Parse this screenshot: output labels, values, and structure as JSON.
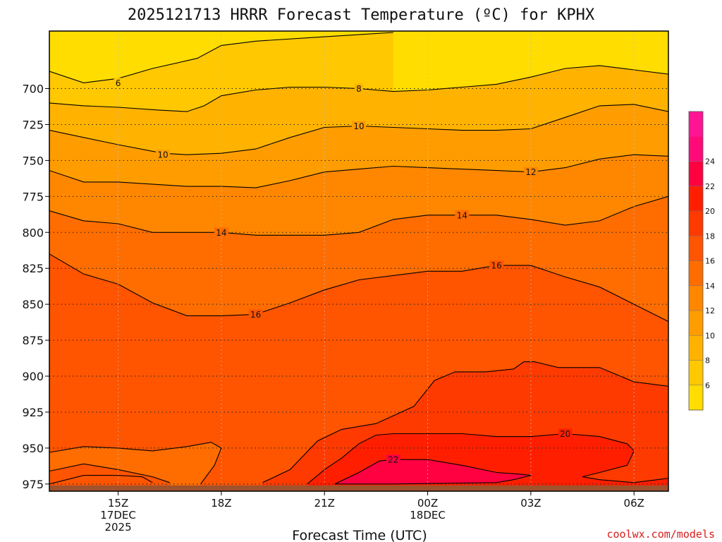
{
  "chart_data": {
    "type": "filled-contour",
    "title": "2025121713 HRRR Forecast Temperature (ºC) for KPHX",
    "xlabel": "Forecast Time (UTC)",
    "ylabel": "",
    "credit": "coolwx.com/models",
    "y_axis": {
      "quantity": "pressure (hPa)",
      "inverted": true,
      "range": [
        980,
        660
      ],
      "ticks": [
        700,
        725,
        750,
        775,
        800,
        825,
        850,
        875,
        900,
        925,
        950,
        975
      ]
    },
    "x_axis": {
      "range_utc": [
        "2025-12-17 13Z",
        "2025-12-18 07Z"
      ],
      "ticks": [
        {
          "hour": 15,
          "label": [
            "15Z",
            "17DEC",
            "2025"
          ]
        },
        {
          "hour": 18,
          "label": [
            "18Z"
          ]
        },
        {
          "hour": 21,
          "label": [
            "21Z"
          ]
        },
        {
          "hour": 24,
          "label": [
            "00Z",
            "18DEC"
          ]
        },
        {
          "hour": 27,
          "label": [
            "03Z"
          ]
        },
        {
          "hour": 30,
          "label": [
            "06Z"
          ]
        }
      ]
    },
    "grid": true,
    "colorbar": {
      "levels": [
        4,
        6,
        8,
        10,
        12,
        14,
        16,
        18,
        20,
        22,
        24,
        26
      ],
      "tick_labels": [
        "6",
        "8",
        "10",
        "12",
        "14",
        "16",
        "18",
        "20",
        "22",
        "24"
      ],
      "colors": [
        "#ffdd00",
        "#ffc800",
        "#ffb300",
        "#ff9d00",
        "#ff8700",
        "#ff6d00",
        "#ff5400",
        "#ff3a00",
        "#ff1f00",
        "#ff0040",
        "#ff0a78",
        "#ff1493"
      ]
    },
    "contours": [
      {
        "level": 6,
        "label": "6",
        "points": [
          [
            13,
            688
          ],
          [
            14,
            696
          ],
          [
            15,
            693
          ],
          [
            16,
            686
          ],
          [
            17.3,
            679
          ],
          [
            18,
            670
          ],
          [
            19,
            667
          ],
          [
            21,
            664
          ],
          [
            23,
            661
          ]
        ]
      },
      {
        "level": 8,
        "label": "8",
        "points": [
          [
            13,
            710
          ],
          [
            14,
            712
          ],
          [
            15,
            713
          ],
          [
            16.2,
            715
          ],
          [
            17,
            716
          ],
          [
            17.5,
            712
          ],
          [
            18,
            705
          ],
          [
            19,
            701
          ],
          [
            20,
            699
          ],
          [
            21,
            699
          ],
          [
            22,
            700
          ],
          [
            23,
            702
          ],
          [
            24,
            701
          ],
          [
            25,
            699
          ],
          [
            26,
            697
          ],
          [
            27,
            692
          ],
          [
            28,
            686
          ],
          [
            29,
            684
          ],
          [
            30,
            687
          ],
          [
            31,
            690
          ]
        ]
      },
      {
        "level": 10,
        "label": "10",
        "points": [
          [
            13,
            729
          ],
          [
            14,
            734
          ],
          [
            15,
            739
          ],
          [
            16.3,
            745
          ],
          [
            17,
            746
          ],
          [
            18,
            745
          ],
          [
            19,
            742
          ],
          [
            20,
            734
          ],
          [
            21,
            727
          ],
          [
            22,
            726
          ],
          [
            23,
            727
          ],
          [
            24,
            728
          ],
          [
            25,
            729
          ],
          [
            26,
            729
          ],
          [
            27,
            728
          ],
          [
            28,
            720
          ],
          [
            29,
            712
          ],
          [
            30,
            711
          ],
          [
            31,
            716
          ]
        ]
      },
      {
        "level": 12,
        "label": "12",
        "points": [
          [
            13,
            757
          ],
          [
            14,
            765
          ],
          [
            15,
            765
          ],
          [
            17,
            768
          ],
          [
            18,
            768
          ],
          [
            19,
            769
          ],
          [
            20,
            764
          ],
          [
            21,
            758
          ],
          [
            22,
            756
          ],
          [
            23,
            754
          ],
          [
            24,
            755
          ],
          [
            25,
            756
          ],
          [
            26,
            757
          ],
          [
            27,
            758
          ],
          [
            28,
            755
          ],
          [
            29,
            749
          ],
          [
            30,
            746
          ],
          [
            31,
            747
          ]
        ]
      },
      {
        "level": 14,
        "label": "14",
        "points": [
          [
            13,
            785
          ],
          [
            14,
            792
          ],
          [
            15,
            794
          ],
          [
            16,
            800
          ],
          [
            17,
            800
          ],
          [
            18,
            800
          ],
          [
            19,
            802
          ],
          [
            20,
            802
          ],
          [
            21,
            802
          ],
          [
            22,
            800
          ],
          [
            23,
            791
          ],
          [
            24,
            788
          ],
          [
            25,
            788
          ],
          [
            26,
            788
          ],
          [
            27,
            791
          ],
          [
            28,
            795
          ],
          [
            29,
            792
          ],
          [
            30,
            782
          ],
          [
            31,
            775
          ]
        ]
      },
      {
        "level": 16,
        "label": "16",
        "points": [
          [
            13,
            815
          ],
          [
            14,
            829
          ],
          [
            15,
            836
          ],
          [
            16,
            849
          ],
          [
            17,
            858
          ],
          [
            18,
            858
          ],
          [
            19,
            857
          ],
          [
            20,
            849
          ],
          [
            21,
            840
          ],
          [
            22,
            833
          ],
          [
            23,
            830
          ],
          [
            24,
            827
          ],
          [
            25,
            827
          ],
          [
            26,
            823
          ],
          [
            27,
            823
          ],
          [
            28,
            831
          ],
          [
            29,
            838
          ],
          [
            30,
            850
          ],
          [
            31,
            862
          ]
        ]
      },
      {
        "level": 18,
        "label": "",
        "points": [
          [
            19.2,
            974
          ],
          [
            20,
            965
          ],
          [
            20.8,
            945
          ],
          [
            21.5,
            937
          ],
          [
            22.5,
            933
          ],
          [
            23.6,
            921
          ],
          [
            24.2,
            903
          ],
          [
            24.8,
            897
          ],
          [
            25.7,
            897
          ],
          [
            26.5,
            895
          ],
          [
            26.8,
            890
          ],
          [
            27.1,
            890
          ],
          [
            27.8,
            894
          ],
          [
            29,
            894
          ],
          [
            30,
            904
          ],
          [
            31,
            907
          ]
        ]
      },
      {
        "level": 20,
        "label": "20",
        "points": [
          [
            20.5,
            975
          ],
          [
            21,
            965
          ],
          [
            21.5,
            957
          ],
          [
            22,
            947
          ],
          [
            22.5,
            941
          ],
          [
            23,
            940
          ],
          [
            24,
            940
          ],
          [
            25,
            940
          ],
          [
            26,
            942
          ],
          [
            27,
            942
          ],
          [
            28,
            940
          ],
          [
            29,
            942
          ],
          [
            29.8,
            947
          ],
          [
            30,
            952
          ],
          [
            29.8,
            962
          ],
          [
            29,
            967
          ],
          [
            28.5,
            970
          ],
          [
            29,
            972
          ],
          [
            30,
            974
          ],
          [
            31,
            971
          ]
        ]
      },
      {
        "level": 22,
        "label": "22",
        "points": [
          [
            21.3,
            975
          ],
          [
            22,
            967
          ],
          [
            22.6,
            959
          ],
          [
            23,
            958
          ],
          [
            24,
            958
          ],
          [
            25,
            962
          ],
          [
            26,
            967
          ],
          [
            26.6,
            968
          ],
          [
            27,
            969
          ],
          [
            26.5,
            972
          ],
          [
            26,
            974
          ],
          [
            23,
            975
          ],
          [
            21.3,
            975
          ]
        ]
      },
      {
        "level": 20,
        "label": "",
        "points": [
          [
            13,
            953
          ],
          [
            14,
            949
          ],
          [
            15,
            950
          ],
          [
            16,
            952
          ],
          [
            17,
            949
          ],
          [
            17.7,
            946
          ],
          [
            18,
            950
          ],
          [
            17.8,
            962
          ],
          [
            17.4,
            975
          ]
        ]
      },
      {
        "level": 18,
        "label": "",
        "points": [
          [
            13,
            966
          ],
          [
            14,
            961
          ],
          [
            15,
            965
          ],
          [
            16,
            970
          ],
          [
            16.5,
            974
          ]
        ]
      },
      {
        "level": 18,
        "label": "",
        "points": [
          [
            13,
            975
          ],
          [
            14,
            969
          ],
          [
            15,
            969
          ],
          [
            15.7,
            970
          ],
          [
            16,
            974
          ]
        ]
      }
    ],
    "contour_label_positions": [
      {
        "label": "6",
        "hour": 15.0,
        "p": 696
      },
      {
        "label": "8",
        "hour": 22.0,
        "p": 700
      },
      {
        "label": "10",
        "hour": 16.3,
        "p": 746
      },
      {
        "label": "10",
        "hour": 22.0,
        "p": 726
      },
      {
        "label": "12",
        "hour": 27.0,
        "p": 758
      },
      {
        "label": "14",
        "hour": 18.0,
        "p": 800
      },
      {
        "label": "14",
        "hour": 25.0,
        "p": 788
      },
      {
        "label": "16",
        "hour": 19.0,
        "p": 857
      },
      {
        "label": "16",
        "hour": 26.0,
        "p": 823
      },
      {
        "label": "20",
        "hour": 28.0,
        "p": 940
      },
      {
        "label": "22",
        "hour": 23.0,
        "p": 958
      }
    ],
    "field_value_at_bottom_left_region_approx": "≈18–19",
    "region_fills": [
      {
        "level_above": 4,
        "boundary": "top"
      },
      {
        "level_above": 6,
        "contour_index": 0
      },
      {
        "level_above": 8,
        "contour_index": 1
      },
      {
        "level_above": 10,
        "contour_index": 2
      },
      {
        "level_above": 12,
        "contour_index": 3
      },
      {
        "level_above": 14,
        "contour_index": 4
      },
      {
        "level_above": 16,
        "contour_index": 5
      },
      {
        "level_above": 18,
        "contour_index": 6
      },
      {
        "level_above": 20,
        "contour_index": 7
      },
      {
        "level_above": 22,
        "contour_index": 8
      }
    ],
    "ground": {
      "color": "#a0522d",
      "from_p": 975
    }
  }
}
